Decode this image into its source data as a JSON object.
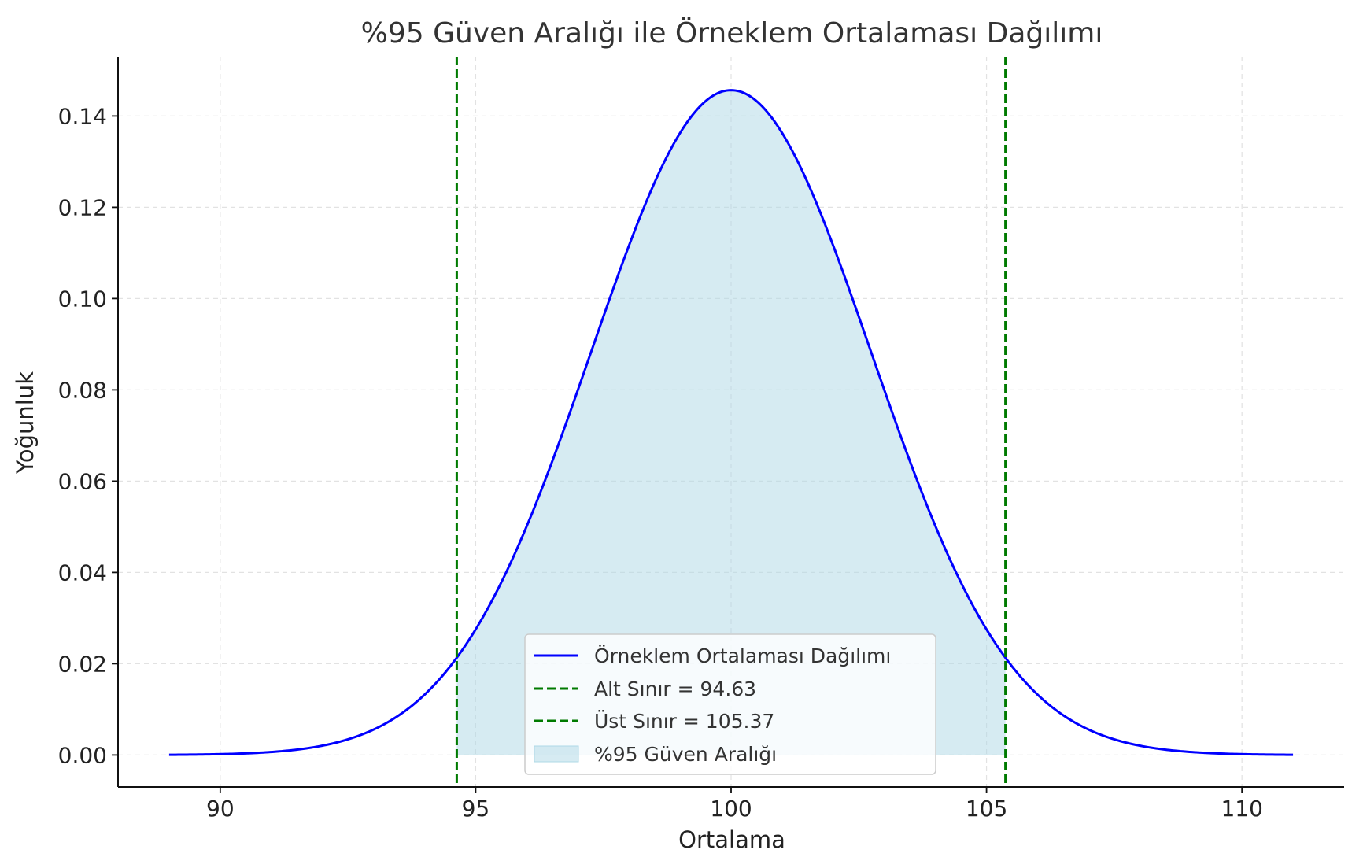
{
  "chart_data": {
    "type": "line",
    "title": "%95 Güven Aralığı ile Örneklem Ortalaması Dağılımı",
    "xlabel": "Ortalama",
    "ylabel": "Yoğunluk",
    "xlim": [
      88,
      112
    ],
    "ylim": [
      -0.007,
      0.153
    ],
    "xticks": [
      90,
      95,
      100,
      105,
      110
    ],
    "yticks": [
      0.0,
      0.02,
      0.04,
      0.06,
      0.08,
      0.1,
      0.12,
      0.14
    ],
    "xtick_labels": [
      "90",
      "95",
      "100",
      "105",
      "110"
    ],
    "ytick_labels": [
      "0.00",
      "0.02",
      "0.04",
      "0.06",
      "0.08",
      "0.10",
      "0.12",
      "0.14"
    ],
    "grid": true,
    "legend_position": "lower center",
    "distribution": {
      "name": "Örneklem Ortalaması Dağılımı",
      "mean": 100,
      "std": 2.739,
      "x_range": [
        89,
        111
      ],
      "color": "#0000ff"
    },
    "confidence_interval": {
      "lower": 94.63,
      "upper": 105.37,
      "lower_label": "Alt Sınır = 94.63",
      "upper_label": "Üst Sınır = 105.37",
      "fill_label": "%95 Güven Aralığı",
      "line_color": "#007a00",
      "fill_color": "#add8e6"
    },
    "legend": [
      {
        "label": "Örneklem Ortalaması Dağılımı",
        "style": "solid",
        "color": "#0000ff"
      },
      {
        "label": "Alt Sınır = 94.63",
        "style": "dashed",
        "color": "#007a00"
      },
      {
        "label": "Üst Sınır = 105.37",
        "style": "dashed",
        "color": "#007a00"
      },
      {
        "label": "%95 Güven Aralığı",
        "style": "patch",
        "color": "#add8e6"
      }
    ]
  }
}
